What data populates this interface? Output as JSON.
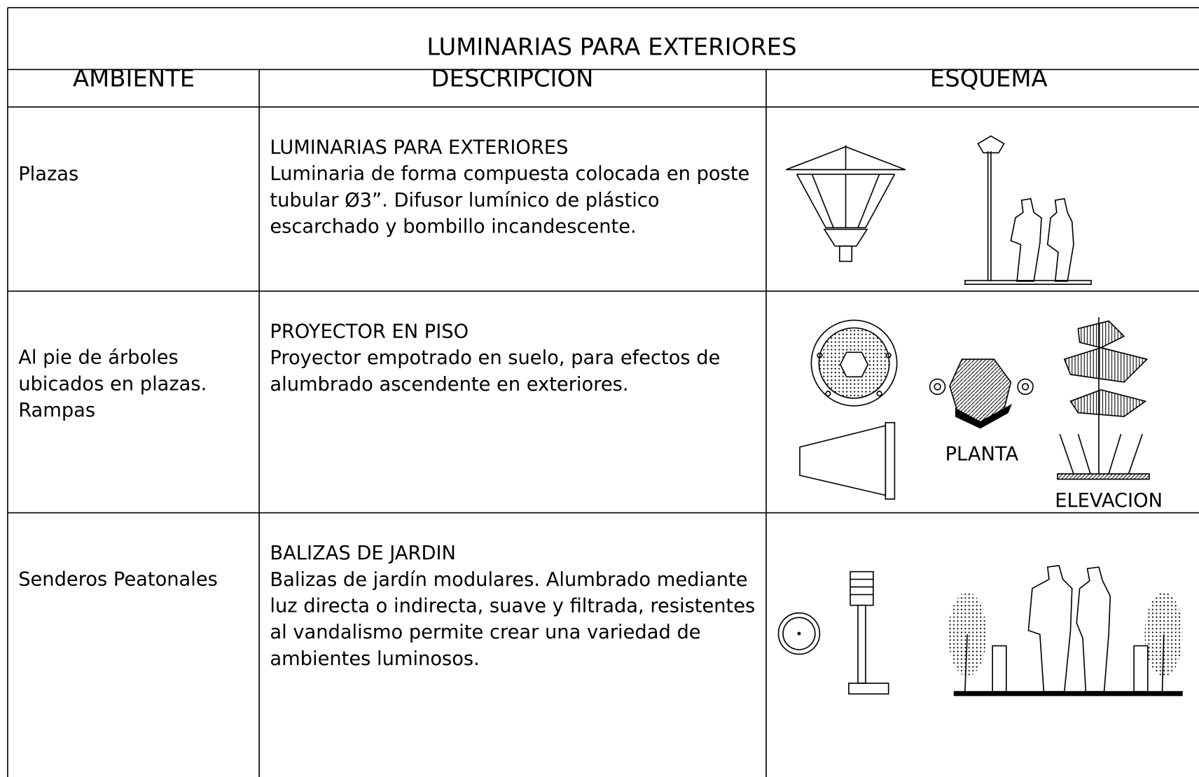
{
  "header": {
    "title": "LUMINARIAS PARA EXTERIORES",
    "columns": [
      "AMBIENTE",
      "DESCRIPCION",
      "ESQUEMA"
    ]
  },
  "table": {
    "rows": [
      {
        "ambiente": [
          "Plazas"
        ],
        "titulo": "LUMINARIAS PARA EXTERIORES",
        "descripcion": [
          "Luminaria de forma compuesta colocada en poste",
          "tubular Ø3”. Difusor lumínico de plástico",
          "escarchado y bombillo incandescente."
        ],
        "labels": []
      },
      {
        "ambiente": [
          "Al pie de árboles",
          "ubicados en plazas.",
          "Rampas"
        ],
        "titulo": "PROYECTOR EN PISO",
        "descripcion": [
          "Proyector empotrado en suelo, para efectos de",
          "alumbrado ascendente en exteriores."
        ],
        "labels": [
          "PLANTA",
          "ELEVACION"
        ]
      },
      {
        "ambiente": [
          "Senderos Peatonales"
        ],
        "titulo": "BALIZAS DE JARDIN",
        "descripcion": [
          "Balizas de jardín modulares. Alumbrado mediante",
          "luz directa o indirecta, suave y filtrada, resistentes",
          "al vandalismo permite crear una variedad de",
          "ambientes luminosos."
        ],
        "labels": []
      }
    ]
  }
}
